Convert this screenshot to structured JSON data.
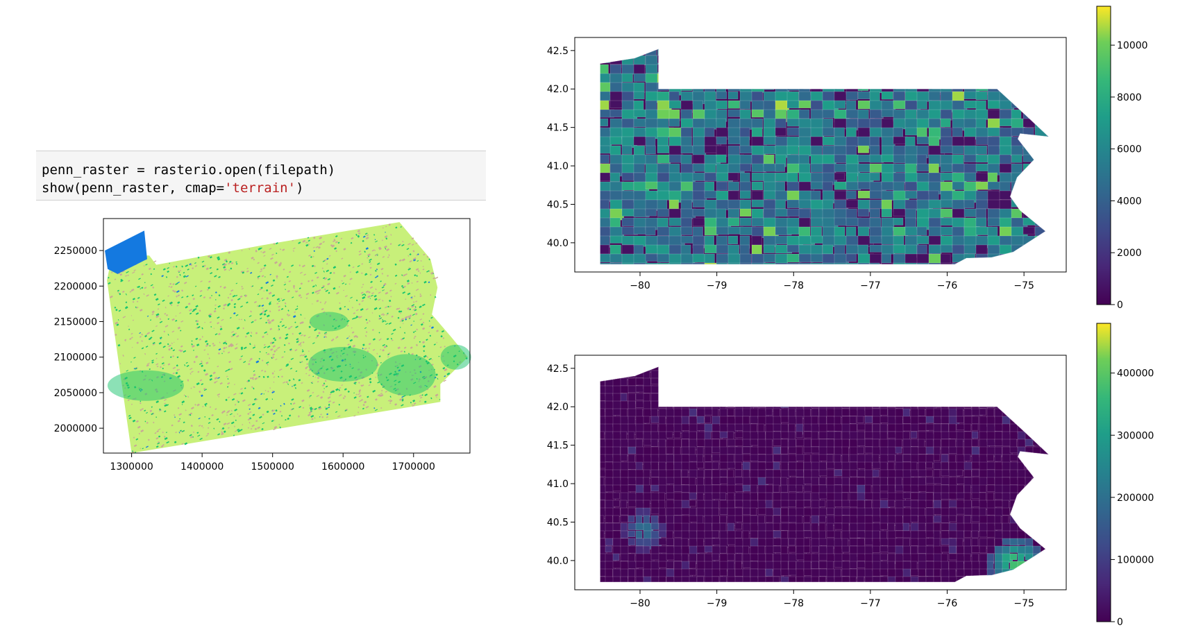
{
  "code_cell": {
    "line1": "penn_raster = rasterio.open(filepath)",
    "line2_pre": "show(penn_raster, cmap=",
    "line2_str": "'terrain'",
    "line2_post": ")"
  },
  "chart_data": [
    {
      "type": "heatmap",
      "cmap": "terrain",
      "xlim": [
        1260000,
        1780000
      ],
      "ylim": [
        1965000,
        2295000
      ],
      "xticks": [
        1300000,
        1400000,
        1500000,
        1600000,
        1700000
      ],
      "xtick_labels": [
        "1300000",
        "1400000",
        "1500000",
        "1600000",
        "1700000"
      ],
      "yticks": [
        2000000,
        2050000,
        2100000,
        2150000,
        2200000,
        2250000
      ],
      "ytick_labels": [
        "2000000",
        "2050000",
        "2100000",
        "2150000",
        "2200000",
        "2250000"
      ],
      "colors": {
        "dominant": "#c8f07a",
        "lowland": "#19c46e",
        "water": "#1479e0",
        "ridge": "#c8a896"
      },
      "grid": false
    },
    {
      "type": "heatmap",
      "cmap": "viridis",
      "xlim": [
        -80.85,
        -74.45
      ],
      "ylim": [
        39.62,
        42.67
      ],
      "xticks": [
        -80,
        -79,
        -78,
        -77,
        -76,
        -75
      ],
      "xtick_labels": [
        "−80",
        "−79",
        "−78",
        "−77",
        "−76",
        "−75"
      ],
      "yticks": [
        40.0,
        40.5,
        41.0,
        41.5,
        42.0,
        42.5
      ],
      "ytick_labels": [
        "40.0",
        "40.5",
        "41.0",
        "41.5",
        "42.0",
        "42.5"
      ],
      "colorbar": {
        "min": 0,
        "max": 11500,
        "ticks": [
          0,
          2000,
          4000,
          6000,
          8000,
          10000
        ],
        "tick_labels": [
          "0",
          "2000",
          "4000",
          "6000",
          "8000",
          "10000"
        ]
      },
      "grid": false
    },
    {
      "type": "heatmap",
      "cmap": "viridis",
      "xlim": [
        -80.85,
        -74.45
      ],
      "ylim": [
        39.62,
        42.67
      ],
      "xticks": [
        -80,
        -79,
        -78,
        -77,
        -76,
        -75
      ],
      "xtick_labels": [
        "−80",
        "−79",
        "−78",
        "−77",
        "−76",
        "−75"
      ],
      "yticks": [
        40.0,
        40.5,
        41.0,
        41.5,
        42.0,
        42.5
      ],
      "ytick_labels": [
        "40.0",
        "40.5",
        "41.0",
        "41.5",
        "42.0",
        "42.5"
      ],
      "colorbar": {
        "min": 0,
        "max": 480000,
        "ticks": [
          0,
          100000,
          200000,
          300000,
          400000
        ],
        "tick_labels": [
          "0",
          "100000",
          "200000",
          "300000",
          "400000"
        ]
      },
      "grid": false
    }
  ]
}
